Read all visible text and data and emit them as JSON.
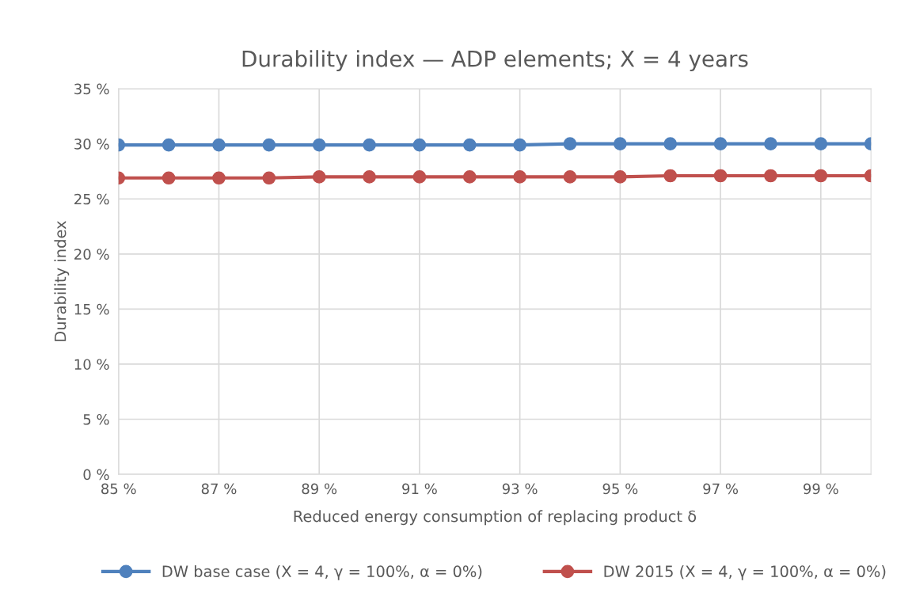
{
  "chart_data": {
    "type": "line",
    "title": "Durability index — ADP elements; X = 4 years",
    "xlabel": "Reduced energy consumption of replacing product δ",
    "ylabel": "Durability index",
    "x": [
      85,
      86,
      87,
      88,
      89,
      90,
      91,
      92,
      93,
      94,
      95,
      96,
      97,
      98,
      99,
      100
    ],
    "series": [
      {
        "name": "DW base case (X = 4, γ = 100%, α = 0%)",
        "color": "#4f81bd",
        "values": [
          29.9,
          29.9,
          29.9,
          29.9,
          29.9,
          29.9,
          29.9,
          29.9,
          29.9,
          30.0,
          30.0,
          30.0,
          30.0,
          30.0,
          30.0,
          30.0
        ]
      },
      {
        "name": "DW 2015 (X = 4, γ = 100%, α = 0%)",
        "color": "#c0504d",
        "values": [
          26.9,
          26.9,
          26.9,
          26.9,
          27.0,
          27.0,
          27.0,
          27.0,
          27.0,
          27.0,
          27.0,
          27.1,
          27.1,
          27.1,
          27.1,
          27.1
        ]
      }
    ],
    "xlim": [
      85,
      100
    ],
    "xticks": [
      {
        "value": 85,
        "label": "85 %"
      },
      {
        "value": 87,
        "label": "87 %"
      },
      {
        "value": 89,
        "label": "89 %"
      },
      {
        "value": 91,
        "label": "91 %"
      },
      {
        "value": 93,
        "label": "93 %"
      },
      {
        "value": 95,
        "label": "95 %"
      },
      {
        "value": 97,
        "label": "97 %"
      },
      {
        "value": 99,
        "label": "99 %"
      }
    ],
    "ylim": [
      0,
      35
    ],
    "yticks": [
      {
        "value": 0,
        "label": "0 %"
      },
      {
        "value": 5,
        "label": "5 %"
      },
      {
        "value": 10,
        "label": "10 %"
      },
      {
        "value": 15,
        "label": "15 %"
      },
      {
        "value": 20,
        "label": "20 %"
      },
      {
        "value": 25,
        "label": "25 %"
      },
      {
        "value": 30,
        "label": "30 %"
      },
      {
        "value": 35,
        "label": "35 %"
      }
    ],
    "grid": true,
    "legend": "bottom",
    "marker": "circle",
    "line_style": "solid"
  }
}
